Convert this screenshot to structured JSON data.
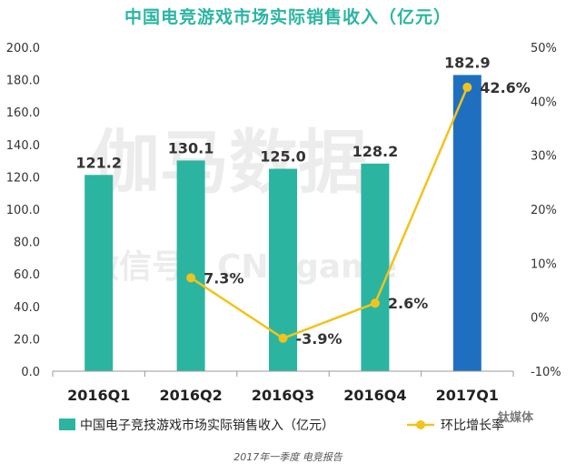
{
  "chart_data": {
    "type": "bar",
    "title": "中国电竞游戏市场实际销售收入（亿元）",
    "categories": [
      "2016Q1",
      "2016Q2",
      "2016Q3",
      "2016Q4",
      "2017Q1"
    ],
    "series": [
      {
        "name": "中国电子竞技游戏市场实际销售收入（亿元）",
        "type": "bar",
        "axis": "left",
        "values": [
          121.2,
          130.1,
          125.0,
          128.2,
          182.9
        ],
        "labels": [
          "121.2",
          "130.1",
          "125.0",
          "128.2",
          "182.9"
        ],
        "colors": [
          "#2bb5a1",
          "#2bb5a1",
          "#2bb5a1",
          "#2bb5a1",
          "#1f6fc0"
        ]
      },
      {
        "name": "环比增长率",
        "type": "line",
        "axis": "right",
        "values": [
          null,
          7.3,
          -3.9,
          2.6,
          42.6
        ],
        "labels": [
          "",
          "7.3%",
          "-3.9%",
          "2.6%",
          "42.6%"
        ],
        "color": "#f2c31b"
      }
    ],
    "y_left": {
      "range": [
        0,
        200
      ],
      "ticks": [
        "0.0",
        "20.0",
        "40.0",
        "60.0",
        "80.0",
        "100.0",
        "120.0",
        "140.0",
        "160.0",
        "180.0",
        "200.0"
      ]
    },
    "y_right": {
      "range": [
        -10,
        50
      ],
      "ticks": [
        "-10%",
        "0%",
        "10%",
        "20%",
        "30%",
        "40%",
        "50%"
      ]
    },
    "legend_position": "bottom",
    "watermark": [
      "伽马数据",
      "微信号：CNGgame"
    ]
  },
  "caption": "2017年一季度 电竞报告",
  "source_mark": "钛媒体"
}
